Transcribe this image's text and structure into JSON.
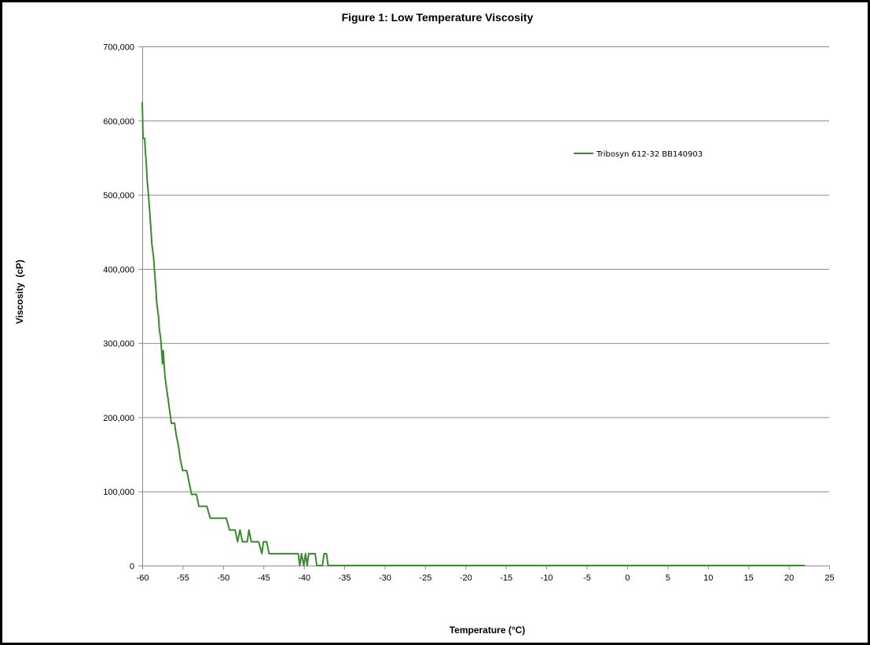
{
  "chart_data": {
    "type": "line",
    "title": "Figure 1:  Low Temperature Viscosity",
    "xlabel": "Temperature (°C)",
    "ylabel": "Viscosity  (cP)",
    "xlim": [
      -60,
      25
    ],
    "ylim": [
      0,
      700000
    ],
    "x_ticks": [
      -60,
      -55,
      -50,
      -45,
      -40,
      -35,
      -30,
      -25,
      -20,
      -15,
      -10,
      -5,
      0,
      5,
      10,
      15,
      20,
      25
    ],
    "x_tick_labels": [
      "-60",
      "-55",
      "-50",
      "-45",
      "-40",
      "-35",
      "-30",
      "-25",
      "-20",
      "-15",
      "-10",
      "-5",
      "0",
      "5",
      "10",
      "15",
      "20",
      "25"
    ],
    "y_ticks": [
      0,
      100000,
      200000,
      300000,
      400000,
      500000,
      600000,
      700000
    ],
    "y_tick_labels": [
      "0",
      "100,000",
      "200,000",
      "300,000",
      "400,000",
      "500,000",
      "600,000",
      "700,000"
    ],
    "grid": "horizontal",
    "legend": "top-right",
    "series": [
      {
        "name": "Tribosyn 612-32 BB140903",
        "color": "#3a8a2e",
        "points": [
          [
            -60.0,
            625000
          ],
          [
            -59.9,
            576000
          ],
          [
            -59.7,
            576000
          ],
          [
            -59.6,
            556000
          ],
          [
            -59.5,
            544000
          ],
          [
            -59.4,
            520000
          ],
          [
            -59.2,
            496000
          ],
          [
            -59.1,
            480000
          ],
          [
            -59.0,
            465000
          ],
          [
            -58.9,
            449000
          ],
          [
            -58.8,
            433000
          ],
          [
            -58.6,
            416000
          ],
          [
            -58.5,
            401000
          ],
          [
            -58.4,
            385000
          ],
          [
            -58.3,
            371000
          ],
          [
            -58.2,
            353000
          ],
          [
            -58.0,
            337000
          ],
          [
            -57.9,
            320000
          ],
          [
            -57.7,
            305000
          ],
          [
            -57.6,
            288000
          ],
          [
            -57.5,
            272000
          ],
          [
            -57.4,
            290000
          ],
          [
            -57.3,
            272000
          ],
          [
            -57.2,
            256000
          ],
          [
            -57.0,
            240000
          ],
          [
            -56.8,
            224000
          ],
          [
            -56.6,
            208000
          ],
          [
            -56.4,
            192000
          ],
          [
            -56.0,
            192000
          ],
          [
            -55.8,
            176000
          ],
          [
            -55.5,
            160000
          ],
          [
            -55.3,
            144000
          ],
          [
            -55.0,
            128000
          ],
          [
            -54.5,
            128000
          ],
          [
            -54.2,
            112000
          ],
          [
            -53.9,
            96000
          ],
          [
            -53.3,
            96000
          ],
          [
            -53.0,
            80000
          ],
          [
            -52.0,
            80000
          ],
          [
            -51.6,
            64000
          ],
          [
            -49.6,
            64000
          ],
          [
            -49.2,
            48000
          ],
          [
            -48.5,
            48000
          ],
          [
            -48.2,
            32000
          ],
          [
            -47.9,
            48000
          ],
          [
            -47.6,
            32000
          ],
          [
            -47.0,
            32000
          ],
          [
            -46.8,
            48000
          ],
          [
            -46.5,
            32000
          ],
          [
            -45.6,
            32000
          ],
          [
            -45.2,
            16000
          ],
          [
            -45.0,
            32000
          ],
          [
            -44.6,
            32000
          ],
          [
            -44.3,
            16000
          ],
          [
            -40.7,
            16000
          ],
          [
            -40.5,
            0
          ],
          [
            -40.3,
            16000
          ],
          [
            -40.0,
            0
          ],
          [
            -39.8,
            16000
          ],
          [
            -39.6,
            0
          ],
          [
            -39.4,
            16000
          ],
          [
            -38.6,
            16000
          ],
          [
            -38.4,
            0
          ],
          [
            -37.7,
            0
          ],
          [
            -37.5,
            16000
          ],
          [
            -37.2,
            16000
          ],
          [
            -37.0,
            0
          ],
          [
            22.0,
            0
          ]
        ]
      }
    ]
  }
}
